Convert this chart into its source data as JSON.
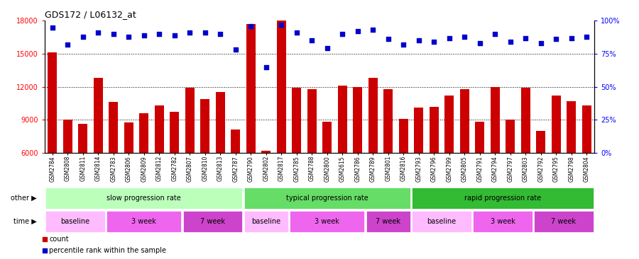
{
  "title": "GDS172 / L06132_at",
  "categories": [
    "GSM2784",
    "GSM2808",
    "GSM2811",
    "GSM2814",
    "GSM2783",
    "GSM2806",
    "GSM2809",
    "GSM2812",
    "GSM2782",
    "GSM2807",
    "GSM2810",
    "GSM2813",
    "GSM2787",
    "GSM2790",
    "GSM2802",
    "GSM2817",
    "GSM2785",
    "GSM2788",
    "GSM2800",
    "GSM2615",
    "GSM2786",
    "GSM2789",
    "GSM2801",
    "GSM2816",
    "GSM2793",
    "GSM2796",
    "GSM2799",
    "GSM2805",
    "GSM2791",
    "GSM2794",
    "GSM2797",
    "GSM2803",
    "GSM2792",
    "GSM2795",
    "GSM2798",
    "GSM2804"
  ],
  "bar_values": [
    15100,
    9000,
    8600,
    12800,
    10600,
    8750,
    9600,
    10300,
    9750,
    11900,
    10900,
    11500,
    8100,
    17700,
    6200,
    18000,
    11900,
    11800,
    8800,
    12100,
    12000,
    12800,
    11800,
    9100,
    10100,
    10200,
    11200,
    11800,
    8800,
    12000,
    9000,
    11900,
    8000,
    11200,
    10700,
    10300
  ],
  "percentile_values": [
    95,
    82,
    88,
    91,
    90,
    88,
    89,
    90,
    89,
    91,
    91,
    90,
    78,
    96,
    65,
    97,
    91,
    85,
    79,
    90,
    92,
    93,
    86,
    82,
    85,
    84,
    87,
    88,
    83,
    90,
    84,
    87,
    83,
    86,
    87,
    88
  ],
  "bar_color": "#cc0000",
  "dot_color": "#0000cc",
  "ylim_left": [
    6000,
    18000
  ],
  "ylim_right": [
    0,
    100
  ],
  "yticks_left": [
    6000,
    9000,
    12000,
    15000,
    18000
  ],
  "yticks_right": [
    0,
    25,
    50,
    75,
    100
  ],
  "ytick_labels_right": [
    "0%",
    "25%",
    "50%",
    "75%",
    "100%"
  ],
  "grid_values": [
    9000,
    12000,
    15000
  ],
  "other_groups": [
    {
      "label": "slow progression rate",
      "start": 0,
      "end": 13,
      "color": "#bbffbb"
    },
    {
      "label": "typical progression rate",
      "start": 13,
      "end": 24,
      "color": "#66dd66"
    },
    {
      "label": "rapid progression rate",
      "start": 24,
      "end": 36,
      "color": "#33bb33"
    }
  ],
  "time_groups": [
    {
      "label": "baseline",
      "start": 0,
      "end": 4,
      "color": "#ffbbff"
    },
    {
      "label": "3 week",
      "start": 4,
      "end": 9,
      "color": "#ee66ee"
    },
    {
      "label": "7 week",
      "start": 9,
      "end": 13,
      "color": "#cc44cc"
    },
    {
      "label": "baseline",
      "start": 13,
      "end": 16,
      "color": "#ffbbff"
    },
    {
      "label": "3 week",
      "start": 16,
      "end": 21,
      "color": "#ee66ee"
    },
    {
      "label": "7 week",
      "start": 21,
      "end": 24,
      "color": "#cc44cc"
    },
    {
      "label": "baseline",
      "start": 24,
      "end": 28,
      "color": "#ffbbff"
    },
    {
      "label": "3 week",
      "start": 28,
      "end": 32,
      "color": "#ee66ee"
    },
    {
      "label": "7 week",
      "start": 32,
      "end": 36,
      "color": "#cc44cc"
    }
  ],
  "other_row_label": "other",
  "time_row_label": "time",
  "legend_count_label": "count",
  "legend_percentile_label": "percentile rank within the sample",
  "bar_width": 0.6,
  "fig_width": 9.0,
  "fig_height": 3.66,
  "dpi": 100
}
